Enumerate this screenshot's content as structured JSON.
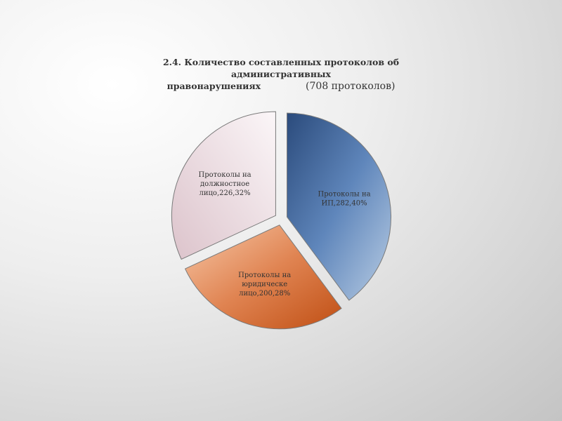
{
  "chart_data": {
    "type": "pie",
    "title_line1": "2.4. Количество составленных протоколов об административных",
    "title_line2": "правонарушениях",
    "subtitle": "(708 протоколов)",
    "slices": [
      {
        "name": "Протоколы на ИП",
        "value": 282,
        "percent": 40,
        "color": "#3f6499",
        "label_lines": [
          "Протоколы на",
          "ИП,282,40%"
        ]
      },
      {
        "name": "Протоколы на юридическе лицо",
        "value": 200,
        "percent": 28,
        "color": "#d0682c",
        "label_lines": [
          "Протоколы на",
          "юридическе",
          "лицо,200,28%"
        ]
      },
      {
        "name": "Протоколы на должностное лицо",
        "value": 226,
        "percent": 32,
        "color": "#ead9df",
        "label_lines": [
          "Протоколы на",
          "должностное",
          "лицо,226,32%"
        ]
      }
    ],
    "exploded": true,
    "legend": "none"
  }
}
